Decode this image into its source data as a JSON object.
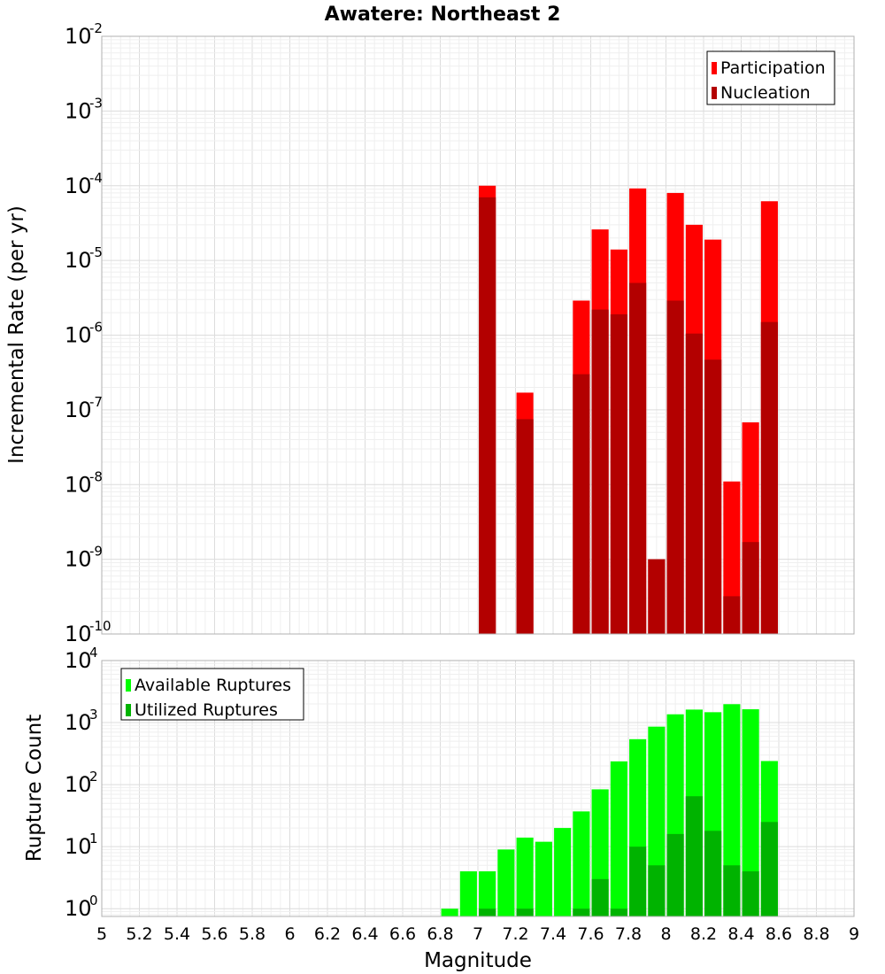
{
  "chart_data": [
    {
      "type": "bar",
      "title": "Awatere: Northeast 2",
      "xlabel": "",
      "ylabel": "Incremental Rate (per yr)",
      "xlim": [
        5,
        9
      ],
      "ylim": [
        1e-10,
        0.01
      ],
      "yscale": "log",
      "y_tick_exponents": [
        "-10",
        "-9",
        "-8",
        "-7",
        "-6",
        "-5",
        "-4",
        "-3",
        "-2"
      ],
      "legend": {
        "placement": "top-right"
      },
      "grid": true,
      "series": [
        {
          "name": "Participation",
          "color": "#ff0000",
          "x": [
            7.05,
            7.25,
            7.55,
            7.65,
            7.75,
            7.85,
            7.95,
            8.05,
            8.15,
            8.25,
            8.35,
            8.45,
            8.55
          ],
          "values": [
            0.0001,
            1.7e-07,
            2.9e-06,
            2.6e-05,
            1.4e-05,
            9.2e-05,
            1e-09,
            8e-05,
            3e-05,
            1.9e-05,
            1.1e-08,
            6.8e-08,
            6.2e-05
          ]
        },
        {
          "name": "Nucleation",
          "color": "#b30000",
          "x": [
            7.05,
            7.25,
            7.55,
            7.65,
            7.75,
            7.85,
            7.95,
            8.05,
            8.15,
            8.25,
            8.35,
            8.45,
            8.55
          ],
          "values": [
            7e-05,
            7.5e-08,
            3e-07,
            2.2e-06,
            1.9e-06,
            5e-06,
            1e-09,
            2.9e-06,
            1.05e-06,
            4.7e-07,
            3.2e-10,
            1.7e-09,
            1.5e-06
          ]
        }
      ]
    },
    {
      "type": "bar",
      "title": "",
      "xlabel": "Magnitude",
      "ylabel": "Rupture Count",
      "xlim": [
        5,
        9
      ],
      "ylim": [
        0.75,
        10000
      ],
      "yscale": "log",
      "x_ticks": [
        "5",
        "5.2",
        "5.4",
        "5.6",
        "5.8",
        "6",
        "6.2",
        "6.4",
        "6.6",
        "6.8",
        "7",
        "7.2",
        "7.4",
        "7.6",
        "7.8",
        "8",
        "8.2",
        "8.4",
        "8.6",
        "8.8",
        "9"
      ],
      "y_tick_exponents": [
        "0",
        "1",
        "2",
        "3",
        "4"
      ],
      "legend": {
        "placement": "top-left"
      },
      "grid": true,
      "series": [
        {
          "name": "Available Ruptures",
          "color": "#00ff00",
          "x": [
            6.85,
            6.95,
            7.05,
            7.15,
            7.25,
            7.35,
            7.45,
            7.55,
            7.65,
            7.75,
            7.85,
            7.95,
            8.05,
            8.15,
            8.25,
            8.35,
            8.45,
            8.55
          ],
          "values": [
            1,
            4,
            4,
            9,
            14,
            12,
            20,
            37,
            84,
            237,
            540,
            860,
            1360,
            1620,
            1470,
            1980,
            1640,
            240
          ]
        },
        {
          "name": "Utilized Ruptures",
          "color": "#00b300",
          "x": [
            7.05,
            7.25,
            7.55,
            7.65,
            7.75,
            7.85,
            7.95,
            8.05,
            8.15,
            8.25,
            8.35,
            8.45,
            8.55
          ],
          "values": [
            1,
            1,
            1,
            3,
            1,
            10,
            5,
            16,
            65,
            18,
            5,
            4,
            25
          ]
        }
      ]
    }
  ]
}
